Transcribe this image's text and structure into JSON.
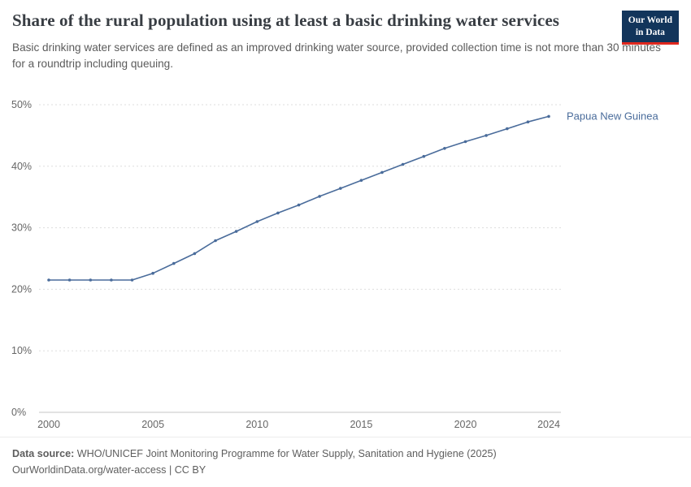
{
  "header": {
    "title": "Share of the rural population using at least a basic drinking water services",
    "subtitle": "Basic drinking water services are defined as an improved drinking water source, provided collection time is not more than 30 minutes for a roundtrip including queuing.",
    "logo": {
      "line1": "Our World",
      "line2": "in Data",
      "bg_color": "#12355b",
      "accent_color": "#e0281e"
    }
  },
  "chart_data": {
    "type": "line",
    "title": "Share of the rural population using at least a basic drinking water services",
    "xlabel": "",
    "ylabel": "",
    "xlim": [
      2000,
      2024
    ],
    "ylim": [
      0,
      50
    ],
    "grid": "horizontal-dashed",
    "legend_position": "end-of-line-label",
    "x": [
      2000,
      2001,
      2002,
      2003,
      2004,
      2005,
      2006,
      2007,
      2008,
      2009,
      2010,
      2011,
      2012,
      2013,
      2014,
      2015,
      2016,
      2017,
      2018,
      2019,
      2020,
      2021,
      2022,
      2023,
      2024
    ],
    "series": [
      {
        "name": "Papua New Guinea",
        "color": "#4a6c9b",
        "values": [
          21.5,
          21.5,
          21.5,
          21.5,
          21.5,
          22.6,
          24.2,
          25.8,
          27.9,
          29.4,
          31.0,
          32.4,
          33.7,
          35.1,
          36.4,
          37.7,
          39.0,
          40.3,
          41.6,
          42.9,
          44.0,
          45.0,
          46.1,
          47.2,
          48.1
        ]
      }
    ],
    "yticks": [
      {
        "value": 0,
        "label": "0%"
      },
      {
        "value": 10,
        "label": "10%"
      },
      {
        "value": 20,
        "label": "20%"
      },
      {
        "value": 30,
        "label": "30%"
      },
      {
        "value": 40,
        "label": "40%"
      },
      {
        "value": 50,
        "label": "50%"
      }
    ],
    "xticks": [
      {
        "value": 2000,
        "label": "2000"
      },
      {
        "value": 2005,
        "label": "2005"
      },
      {
        "value": 2010,
        "label": "2010"
      },
      {
        "value": 2015,
        "label": "2015"
      },
      {
        "value": 2020,
        "label": "2020"
      },
      {
        "value": 2024,
        "label": "2024"
      }
    ]
  },
  "footer": {
    "datasource_label": "Data source:",
    "datasource_text": " WHO/UNICEF Joint Monitoring Programme for Water Supply, Sanitation and Hygiene (2025)",
    "citation": "OurWorldinData.org/water-access | CC BY"
  }
}
